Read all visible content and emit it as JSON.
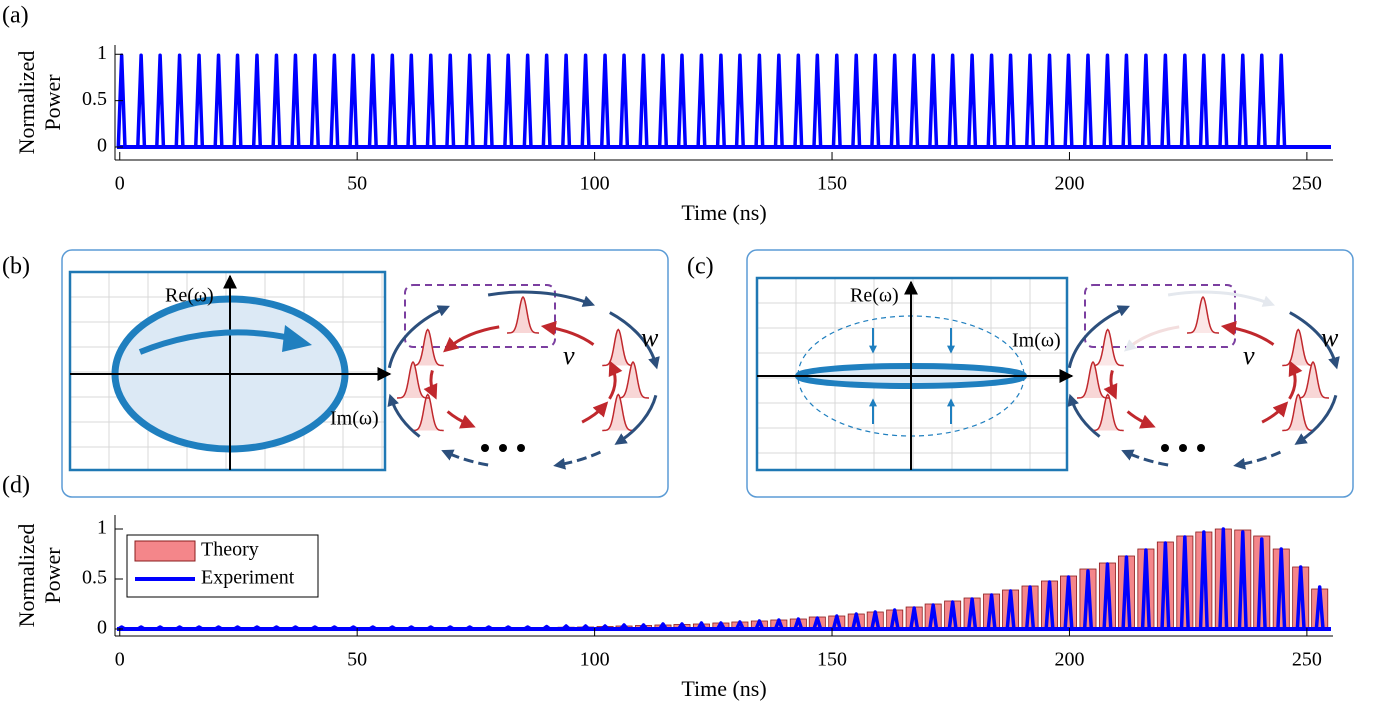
{
  "chart_data": [
    {
      "type": "pulse",
      "label": "(a)",
      "ylabel": [
        "Normalized",
        "Power"
      ],
      "xlabel": "Time (ns)",
      "xlim": [
        -1,
        255.5
      ],
      "ylim": [
        -0.14,
        1.1
      ],
      "xticks": [
        0,
        50,
        100,
        150,
        200,
        250
      ],
      "yticks": [
        0,
        0.5,
        1
      ],
      "color": "#0000ff",
      "x": [
        0.4,
        4.5,
        8.5,
        12.6,
        16.7,
        20.8,
        24.8,
        28.9,
        33.0,
        37.0,
        41.1,
        45.2,
        49.2,
        53.3,
        57.4,
        61.4,
        65.5,
        69.6,
        73.7,
        77.7,
        81.8,
        85.9,
        89.9,
        94.0,
        98.1,
        102.2,
        106.2,
        110.3,
        114.4,
        118.4,
        122.5,
        126.6,
        130.6,
        134.7,
        138.8,
        142.9,
        146.9,
        151.0,
        155.1,
        159.1,
        163.2,
        167.3,
        171.3,
        175.4,
        179.5,
        183.6,
        187.6,
        191.7,
        195.8,
        199.8,
        203.9,
        208.0,
        212.0,
        216.1,
        220.2,
        224.3,
        228.3,
        232.4,
        236.5,
        240.5,
        244.6
      ],
      "values": [
        0.99,
        0.99,
        0.99,
        0.99,
        0.99,
        0.99,
        0.99,
        0.99,
        0.99,
        0.99,
        0.99,
        0.99,
        0.99,
        0.99,
        0.99,
        0.99,
        0.99,
        0.99,
        0.99,
        0.99,
        0.99,
        0.99,
        0.99,
        0.99,
        0.99,
        0.99,
        0.99,
        0.99,
        0.99,
        0.99,
        0.99,
        0.99,
        0.99,
        0.99,
        0.99,
        0.99,
        0.99,
        0.99,
        0.99,
        0.99,
        0.99,
        0.99,
        0.99,
        0.99,
        0.99,
        0.99,
        0.99,
        0.99,
        0.99,
        0.99,
        0.99,
        0.99,
        0.99,
        0.99,
        0.99,
        0.99,
        0.99,
        0.99,
        0.99,
        0.99,
        0.99
      ]
    },
    {
      "type": "combo",
      "label": "(d)",
      "ylabel": [
        "Normalized",
        "Power"
      ],
      "xlabel": "Time (ns)",
      "xlim": [
        -1,
        255.5
      ],
      "ylim": [
        -0.07,
        1.14
      ],
      "xticks": [
        0,
        50,
        100,
        150,
        200,
        250
      ],
      "yticks": [
        0,
        0.5,
        1
      ],
      "legend": "upper left",
      "x": [
        0.4,
        4.5,
        8.5,
        12.6,
        16.7,
        20.8,
        24.8,
        28.9,
        33.0,
        37.0,
        41.1,
        45.2,
        49.2,
        53.3,
        57.4,
        61.4,
        65.5,
        69.6,
        73.7,
        77.7,
        81.8,
        85.9,
        89.9,
        94.0,
        98.1,
        102.2,
        106.2,
        110.3,
        114.4,
        118.4,
        122.5,
        126.6,
        130.6,
        134.7,
        138.8,
        142.9,
        146.9,
        151.0,
        155.1,
        159.1,
        163.2,
        167.3,
        171.3,
        175.4,
        179.5,
        183.6,
        187.6,
        191.7,
        195.8,
        199.8,
        203.9,
        208.0,
        212.0,
        216.1,
        220.2,
        224.3,
        228.3,
        232.4,
        236.5,
        240.5,
        244.6,
        248.7,
        252.7
      ],
      "series": [
        {
          "name": "Theory",
          "type": "bar",
          "color": "#f4868a",
          "values": [
            0,
            0,
            0,
            0,
            0,
            0,
            0,
            0,
            0,
            0,
            0,
            0,
            0,
            0,
            0,
            0,
            0,
            0,
            0.005,
            0.007,
            0.01,
            0.012,
            0.015,
            0.018,
            0.02,
            0.025,
            0.03,
            0.035,
            0.04,
            0.045,
            0.05,
            0.06,
            0.07,
            0.08,
            0.09,
            0.1,
            0.12,
            0.13,
            0.15,
            0.17,
            0.19,
            0.22,
            0.25,
            0.28,
            0.31,
            0.35,
            0.39,
            0.43,
            0.48,
            0.53,
            0.6,
            0.66,
            0.73,
            0.8,
            0.87,
            0.93,
            0.97,
            1.0,
            0.99,
            0.93,
            0.8,
            0.62,
            0.4
          ]
        },
        {
          "name": "Experiment",
          "type": "pulse",
          "color": "#0000ff",
          "values": [
            0.02,
            0.02,
            0.02,
            0.02,
            0.02,
            0.02,
            0.02,
            0.02,
            0.02,
            0.02,
            0.02,
            0.02,
            0.02,
            0.02,
            0.02,
            0.02,
            0.02,
            0.02,
            0.02,
            0.02,
            0.02,
            0.02,
            0.025,
            0.03,
            0.03,
            0.03,
            0.04,
            0.04,
            0.05,
            0.05,
            0.06,
            0.06,
            0.07,
            0.08,
            0.09,
            0.1,
            0.11,
            0.13,
            0.15,
            0.17,
            0.19,
            0.21,
            0.24,
            0.27,
            0.3,
            0.34,
            0.38,
            0.42,
            0.47,
            0.52,
            0.58,
            0.65,
            0.72,
            0.79,
            0.86,
            0.92,
            0.97,
            1.0,
            0.97,
            0.9,
            0.8,
            0.62,
            0.42
          ]
        }
      ]
    }
  ],
  "diagrams": [
    {
      "label": "(b)",
      "re_axis": "Re(ω)",
      "im_axis": "Im(ω)",
      "coupling_v": "v",
      "coupling_w": "w"
    },
    {
      "label": "(c)",
      "re_axis": "Re(ω)",
      "im_axis": "Im(ω)",
      "coupling_v": "v",
      "coupling_w": "w"
    }
  ]
}
